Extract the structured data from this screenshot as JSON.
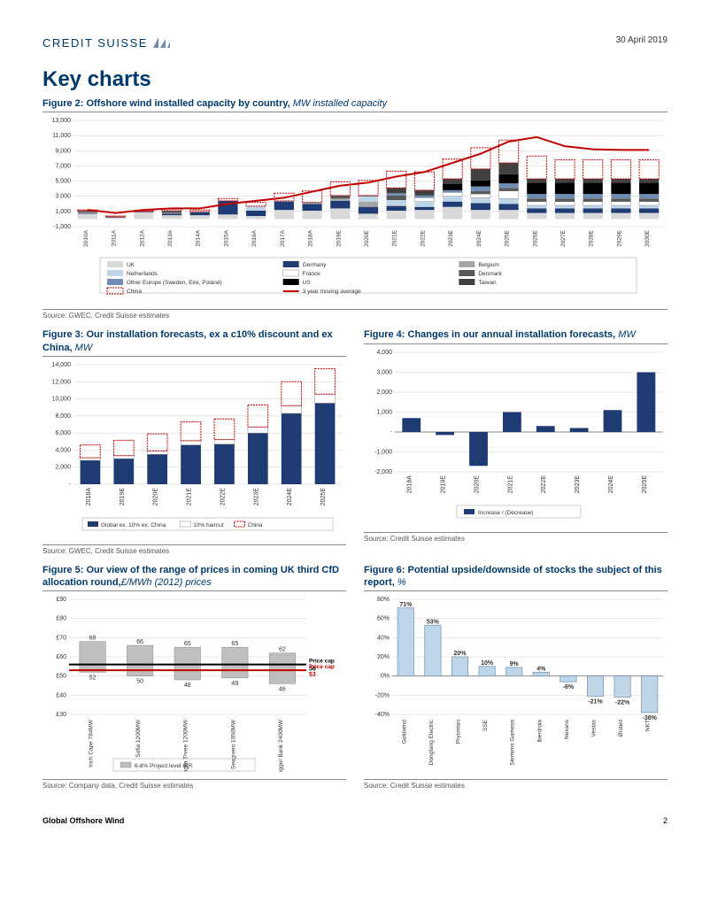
{
  "header": {
    "brand": "CREDIT SUISSE",
    "date": "30 April 2019"
  },
  "page_title": "Key charts",
  "footer": {
    "left": "Global Offshore Wind",
    "page": "2"
  },
  "fig2": {
    "title_bold": "Figure 2: Offshore wind installed capacity by country,",
    "title_ital": " MW installed capacity",
    "source": "Source: GWEC, Credit Suisse estimates",
    "type": "stacked-bar-with-line",
    "ylim": [
      -1000,
      13000
    ],
    "ytick_step": 2000,
    "categories": [
      "2010A",
      "2011A",
      "2012A",
      "2013A",
      "2014A",
      "2015A",
      "2016A",
      "2017A",
      "2018A",
      "2019E",
      "2020E",
      "2021E",
      "2022E",
      "2023E",
      "2024E",
      "2025E",
      "2026E",
      "2027E",
      "2028E",
      "2029E",
      "2030E"
    ],
    "series": {
      "UK": [
        700,
        200,
        900,
        500,
        500,
        600,
        400,
        1200,
        1100,
        1400,
        700,
        1100,
        1200,
        1600,
        1200,
        1200,
        800,
        800,
        800,
        800,
        800
      ],
      "Germany": [
        100,
        100,
        100,
        200,
        400,
        1800,
        700,
        1100,
        900,
        1000,
        900,
        600,
        400,
        700,
        900,
        800,
        600,
        600,
        600,
        600,
        600
      ],
      "Belgium": [
        100,
        0,
        0,
        100,
        100,
        0,
        0,
        100,
        200,
        300,
        700,
        100,
        0,
        0,
        0,
        0,
        0,
        0,
        0,
        0,
        0
      ],
      "Netherlands": [
        0,
        0,
        0,
        0,
        0,
        0,
        600,
        0,
        0,
        0,
        700,
        700,
        700,
        700,
        700,
        700,
        400,
        400,
        400,
        400,
        400
      ],
      "France": [
        0,
        0,
        0,
        0,
        0,
        0,
        0,
        0,
        0,
        0,
        0,
        0,
        500,
        500,
        500,
        1000,
        500,
        500,
        500,
        500,
        500
      ],
      "Denmark": [
        200,
        0,
        0,
        300,
        0,
        0,
        0,
        0,
        0,
        400,
        0,
        600,
        0,
        0,
        400,
        400,
        400,
        400,
        400,
        400,
        400
      ],
      "OtherEurope": [
        0,
        0,
        0,
        0,
        0,
        0,
        0,
        0,
        0,
        0,
        0,
        300,
        300,
        300,
        600,
        600,
        600,
        600,
        600,
        600,
        600
      ],
      "US": [
        0,
        0,
        0,
        0,
        0,
        0,
        0,
        0,
        0,
        0,
        0,
        0,
        0,
        800,
        800,
        1200,
        1500,
        1500,
        1500,
        1500,
        1500
      ],
      "Taiwan": [
        0,
        0,
        0,
        0,
        0,
        0,
        0,
        0,
        0,
        0,
        100,
        700,
        700,
        700,
        1500,
        1500,
        500,
        500,
        500,
        500,
        500
      ],
      "China": [
        100,
        100,
        100,
        200,
        200,
        300,
        500,
        1000,
        1500,
        1800,
        2000,
        2200,
        2400,
        2600,
        2800,
        3000,
        3000,
        2500,
        2500,
        2500,
        2500
      ]
    },
    "line_3yr_ma": [
      1200,
      800,
      1200,
      1400,
      1400,
      2000,
      2400,
      2800,
      3600,
      4400,
      4800,
      5600,
      6200,
      7400,
      8600,
      10200,
      10800,
      9600,
      9200,
      9100,
      9100
    ],
    "colors": {
      "UK": "#d9d9d9",
      "Germany": "#1f3b73",
      "Belgium": "#a6a6a6",
      "Netherlands": "#bfd5e8",
      "France": "#ffffff",
      "Denmark": "#595959",
      "OtherEurope": "#6f8db3",
      "US": "#000000",
      "Taiwan": "#404040",
      "China_border": "#c00000",
      "line": "#c00000"
    },
    "legend": [
      {
        "label": "UK",
        "swatch": "#d9d9d9",
        "type": "box"
      },
      {
        "label": "Germany",
        "swatch": "#1f3b73",
        "type": "box"
      },
      {
        "label": "Belgium",
        "swatch": "#a6a6a6",
        "type": "box"
      },
      {
        "label": "Netherlands",
        "swatch": "#bfd5e8",
        "type": "box"
      },
      {
        "label": "France",
        "swatch": "#ffffff",
        "type": "box",
        "border": "#888"
      },
      {
        "label": "Denmark",
        "swatch": "#595959",
        "type": "box"
      },
      {
        "label": "Other Europe (Sweden, Eire, Poland)",
        "swatch": "#6f8db3",
        "type": "box"
      },
      {
        "label": "US",
        "swatch": "#000000",
        "type": "box"
      },
      {
        "label": "Taiwan",
        "swatch": "#404040",
        "type": "box"
      },
      {
        "label": "China",
        "swatch": "none",
        "type": "dashbox",
        "border": "#c00000"
      },
      {
        "label": "3 year moving average",
        "swatch": "#c00000",
        "type": "line"
      }
    ],
    "grid_color": "#d0d0d0",
    "label_fontsize": 7
  },
  "fig3": {
    "title_bold": "Figure 3: Our installation forecasts, ex a c10% discount and ex China,",
    "title_ital": " MW",
    "source": "Source: GWEC, Credit Suisse estimates",
    "type": "stacked-bar",
    "ylim": [
      0,
      14000
    ],
    "ytick_step": 2000,
    "ytick_zero_label": "-",
    "categories": [
      "2018A",
      "2019E",
      "2020E",
      "2021E",
      "2022E",
      "2023E",
      "2024E",
      "2025E"
    ],
    "global_ex": [
      2800,
      3000,
      3500,
      4600,
      4700,
      6000,
      8300,
      9500
    ],
    "haircut10": [
      300,
      350,
      400,
      500,
      550,
      700,
      900,
      1050
    ],
    "china": [
      1500,
      1800,
      2000,
      2200,
      2400,
      2600,
      2800,
      3000
    ],
    "colors": {
      "global_ex": "#1f3b73",
      "haircut10": "#ffffff",
      "haircut_border": "#888",
      "china_border": "#c00000"
    },
    "legend": [
      {
        "label": "Global ex. 10% ex. China",
        "swatch": "#1f3b73",
        "type": "box"
      },
      {
        "label": "10% haircut",
        "swatch": "#ffffff",
        "type": "box",
        "border": "#888"
      },
      {
        "label": "China",
        "swatch": "none",
        "type": "dashbox",
        "border": "#c00000"
      }
    ],
    "grid_color": "#d0d0d0"
  },
  "fig4": {
    "title_bold": "Figure 4: Changes in our annual installation forecasts,",
    "title_ital": " MW",
    "source": "Source: Credit Suisse estimates",
    "type": "bar",
    "ylim": [
      -2000,
      4000
    ],
    "ytick_step": 1000,
    "ytick_zero_label": "-",
    "categories": [
      "2018A",
      "2019E",
      "2020E",
      "2021E",
      "2022E",
      "2023E",
      "2024E",
      "2025E"
    ],
    "values": [
      700,
      -150,
      -1700,
      1000,
      300,
      200,
      1100,
      3000
    ],
    "bar_color": "#1f3b73",
    "legend_label": "Increase / (Decrease)",
    "grid_color": "#d0d0d0"
  },
  "fig5": {
    "title_bold": "Figure 5: Our view of the range of prices in coming UK third CfD allocation round,",
    "title_ital": "£/MWh (2012) prices",
    "source": "Source: Company data, Credit Suisse estimates",
    "type": "floating-bar",
    "ylim": [
      30,
      90
    ],
    "ytick_step": 10,
    "yprefix": "£",
    "categories": [
      "Inch Cape 784MW",
      "Sofia 1200MW",
      "East Anglia Three 1200MW",
      "Seagreen 1050MW",
      "Dogger Bank 2400MW"
    ],
    "ranges": [
      [
        52,
        68
      ],
      [
        50,
        66
      ],
      [
        48,
        65
      ],
      [
        49,
        65
      ],
      [
        46,
        62
      ]
    ],
    "top_labels": [
      68,
      66,
      65,
      65,
      62
    ],
    "bottom_labels": [
      52,
      50,
      48,
      49,
      46
    ],
    "caps": [
      {
        "value": 56,
        "label": "Price cap",
        "label2": "56",
        "color": "#000000"
      },
      {
        "value": 53,
        "label": "Price cap",
        "label2": "53",
        "color": "#c00000"
      }
    ],
    "bar_color": "#bfbfbf",
    "legend_label": "6-8% Project level IRR",
    "grid_color": "#d0d0d0"
  },
  "fig6": {
    "title_bold": "Figure 6: Potential upside/downside of stocks the subject of this report,",
    "title_ital": " %",
    "source": "Source: Credit Suisse estimates",
    "type": "bar",
    "ylim": [
      -40,
      80
    ],
    "ytick_step": 20,
    "categories": [
      "Goldwind",
      "Dongfang Electric",
      "Prysmian",
      "SSE",
      "Siemens Gamesa",
      "Iberdrola",
      "Nexans",
      "Vestas",
      "Ørsted",
      "NKT"
    ],
    "values": [
      71,
      53,
      20,
      10,
      9,
      4,
      -6,
      -21,
      -22,
      -38
    ],
    "value_labels": [
      "71%",
      "53%",
      "20%",
      "10%",
      "9%",
      "4%",
      "-6%",
      "-21%",
      "-22%",
      "-38%"
    ],
    "bar_color": "#bfd5e8",
    "bar_border": "#6f8db3",
    "grid_color": "#d0d0d0"
  }
}
